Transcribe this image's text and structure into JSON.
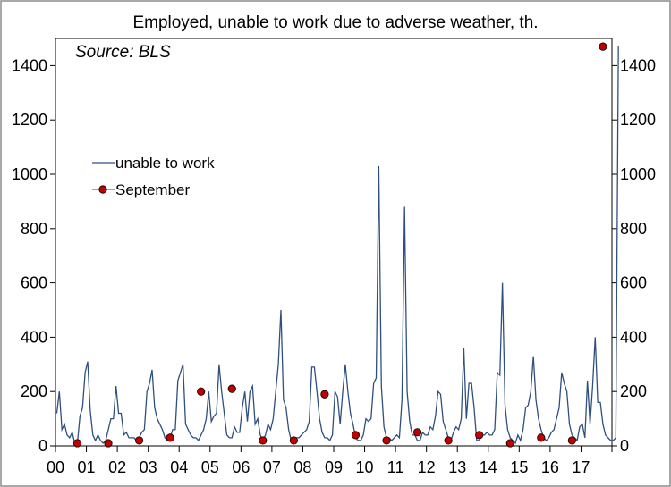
{
  "colors": {
    "line": "#2f4f7f",
    "marker": "#c00000",
    "marker_stroke": "#000000",
    "axis": "#000000",
    "frame": "#8c8c8c"
  },
  "chart_data": {
    "type": "line",
    "title": "Employed, unable to work due to adverse weather, th.",
    "annotation": "Source: BLS",
    "x_tick_labels": [
      "00",
      "01",
      "02",
      "03",
      "04",
      "05",
      "06",
      "07",
      "08",
      "09",
      "10",
      "11",
      "12",
      "13",
      "14",
      "15",
      "16",
      "17"
    ],
    "xlim": [
      2000,
      2018
    ],
    "ylim": [
      0,
      1500
    ],
    "y_ticks": [
      0,
      200,
      400,
      600,
      800,
      1000,
      1200,
      1400
    ],
    "legend_position": "left",
    "series": [
      {
        "name": "unable to work",
        "style": "line",
        "start_year": 2000,
        "interval": "monthly",
        "values": [
          120,
          200,
          60,
          80,
          40,
          30,
          50,
          10,
          10,
          110,
          140,
          270,
          310,
          130,
          40,
          20,
          40,
          20,
          10,
          20,
          60,
          100,
          100,
          220,
          120,
          120,
          40,
          50,
          30,
          30,
          30,
          20,
          30,
          50,
          60,
          200,
          230,
          280,
          140,
          100,
          80,
          60,
          30,
          20,
          30,
          60,
          60,
          240,
          270,
          300,
          80,
          60,
          40,
          30,
          30,
          20,
          40,
          60,
          100,
          200,
          90,
          110,
          120,
          300,
          200,
          120,
          40,
          30,
          30,
          70,
          50,
          50,
          140,
          200,
          90,
          200,
          220,
          80,
          100,
          40,
          20,
          40,
          80,
          60,
          100,
          200,
          300,
          500,
          170,
          140,
          60,
          20,
          20,
          30,
          30,
          40,
          50,
          60,
          90,
          290,
          290,
          200,
          100,
          50,
          30,
          30,
          20,
          40,
          200,
          180,
          80,
          200,
          300,
          200,
          120,
          80,
          30,
          20,
          20,
          40,
          100,
          90,
          100,
          230,
          250,
          1030,
          220,
          70,
          30,
          30,
          20,
          30,
          40,
          30,
          170,
          880,
          200,
          90,
          40,
          40,
          20,
          20,
          50,
          40,
          40,
          70,
          60,
          110,
          200,
          190,
          90,
          60,
          30,
          20,
          50,
          70,
          60,
          100,
          360,
          100,
          230,
          230,
          140,
          20,
          20,
          40,
          40,
          50,
          40,
          40,
          60,
          270,
          260,
          600,
          150,
          60,
          30,
          20,
          10,
          40,
          20,
          60,
          140,
          150,
          200,
          330,
          170,
          100,
          60,
          30,
          20,
          30,
          50,
          60,
          100,
          140,
          270,
          230,
          200,
          80,
          40,
          30,
          20,
          70,
          80,
          30,
          240,
          80,
          220,
          400,
          160,
          160,
          80,
          40,
          30,
          20,
          20,
          30,
          1470
        ]
      },
      {
        "name": "September",
        "style": "markers",
        "month": 9,
        "points": [
          {
            "year": 2000,
            "value": 10
          },
          {
            "year": 2001,
            "value": 10
          },
          {
            "year": 2002,
            "value": 20
          },
          {
            "year": 2003,
            "value": 30
          },
          {
            "year": 2004,
            "value": 200
          },
          {
            "year": 2005,
            "value": 210
          },
          {
            "year": 2006,
            "value": 20
          },
          {
            "year": 2007,
            "value": 20
          },
          {
            "year": 2008,
            "value": 190
          },
          {
            "year": 2009,
            "value": 40
          },
          {
            "year": 2010,
            "value": 20
          },
          {
            "year": 2011,
            "value": 50
          },
          {
            "year": 2012,
            "value": 20
          },
          {
            "year": 2013,
            "value": 40
          },
          {
            "year": 2014,
            "value": 10
          },
          {
            "year": 2015,
            "value": 30
          },
          {
            "year": 2016,
            "value": 20
          },
          {
            "year": 2017,
            "value": 1470
          }
        ]
      }
    ]
  }
}
